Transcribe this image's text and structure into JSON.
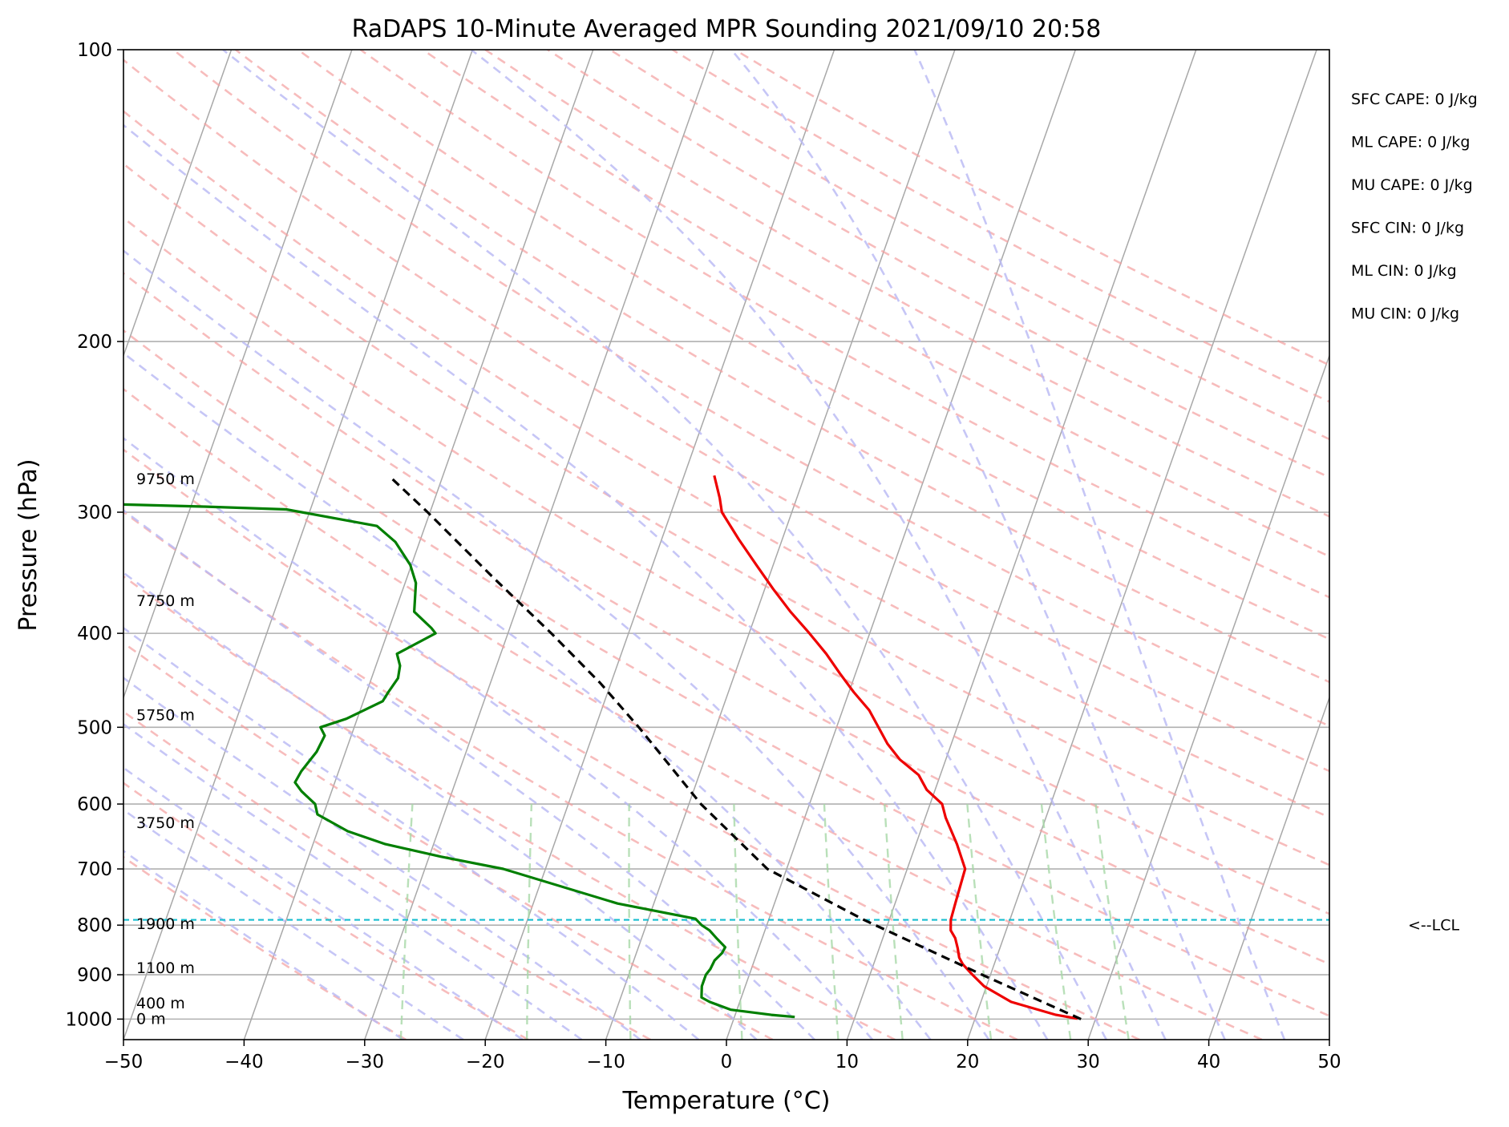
{
  "chart_data": {
    "type": "line",
    "title": "RaDAPS 10-Minute Averaged MPR Sounding 2021/09/10 20:58",
    "xlabel": "Temperature (°C)",
    "ylabel": "Pressure (hPa)",
    "xlim": [
      -50,
      50
    ],
    "ylim": [
      1050,
      100
    ],
    "y_scale": "log",
    "skew": "skew-T log-p",
    "grid": true,
    "x_ticks": [
      "−50",
      "−40",
      "−30",
      "−20",
      "−10",
      "0",
      "10",
      "20",
      "30",
      "40",
      "50"
    ],
    "y_ticks": [
      "100",
      "200",
      "300",
      "400",
      "500",
      "600",
      "700",
      "800",
      "900",
      "1000"
    ],
    "height_labels": [
      {
        "text": "9750 m",
        "p": 277
      },
      {
        "text": "7750 m",
        "p": 370
      },
      {
        "text": "5750 m",
        "p": 485
      },
      {
        "text": "3750 m",
        "p": 627
      },
      {
        "text": "1900 m",
        "p": 797
      },
      {
        "text": "1100 m",
        "p": 885
      },
      {
        "text": "400 m",
        "p": 962
      },
      {
        "text": "0 m",
        "p": 998
      }
    ],
    "lcl": {
      "label": "<--LCL",
      "p": 790,
      "color": "#17becf"
    },
    "indices": [
      "SFC CAPE: 0 J/kg",
      "ML CAPE: 0 J/kg",
      "MU CAPE: 0 J/kg",
      "SFC CIN: 0 J/kg",
      "ML CIN: 0 J/kg",
      "MU CIN: 0 J/kg"
    ],
    "series": [
      {
        "kind": "temperature",
        "color": "#ee0000",
        "points": [
          [
            999.0,
            28.5
          ],
          [
            990,
            26.6
          ],
          [
            960,
            22.5
          ],
          [
            925,
            19.8
          ],
          [
            900,
            18.5
          ],
          [
            878,
            17.4
          ],
          [
            864,
            16.9
          ],
          [
            845,
            16.5
          ],
          [
            825,
            16.0
          ],
          [
            810,
            15.4
          ],
          [
            790,
            15.1
          ],
          [
            760,
            15.0
          ],
          [
            700,
            14.8
          ],
          [
            660,
            13.4
          ],
          [
            620,
            11.7
          ],
          [
            600,
            11.0
          ],
          [
            580,
            9.3
          ],
          [
            560,
            8.2
          ],
          [
            540,
            6.2
          ],
          [
            520,
            4.7
          ],
          [
            480,
            2.2
          ],
          [
            460,
            0.4
          ],
          [
            440,
            -1.3
          ],
          [
            420,
            -3.0
          ],
          [
            400,
            -5.0
          ],
          [
            380,
            -7.2
          ],
          [
            360,
            -9.3
          ],
          [
            340,
            -11.4
          ],
          [
            320,
            -13.6
          ],
          [
            300,
            -15.8
          ],
          [
            290,
            -16.4
          ],
          [
            275,
            -17.5
          ]
        ]
      },
      {
        "kind": "dewpoint",
        "color": "#007f00",
        "points": [
          [
            995,
            5.0
          ],
          [
            990,
            3.0
          ],
          [
            978,
            -0.5
          ],
          [
            960,
            -2.5
          ],
          [
            950,
            -3.3
          ],
          [
            925,
            -3.6
          ],
          [
            915,
            -3.6
          ],
          [
            900,
            -3.6
          ],
          [
            888,
            -3.4
          ],
          [
            870,
            -3.3
          ],
          [
            855,
            -2.9
          ],
          [
            843,
            -2.8
          ],
          [
            825,
            -3.8
          ],
          [
            810,
            -4.6
          ],
          [
            800,
            -5.4
          ],
          [
            788,
            -6.1
          ],
          [
            760,
            -13.0
          ],
          [
            700,
            -23.5
          ],
          [
            680,
            -29.0
          ],
          [
            660,
            -34.0
          ],
          [
            640,
            -37.5
          ],
          [
            615,
            -40.5
          ],
          [
            600,
            -41.0
          ],
          [
            582,
            -42.5
          ],
          [
            570,
            -43.3
          ],
          [
            555,
            -43.1
          ],
          [
            530,
            -42.4
          ],
          [
            510,
            -42.2
          ],
          [
            500,
            -42.8
          ],
          [
            490,
            -40.9
          ],
          [
            470,
            -38.4
          ],
          [
            460,
            -38.2
          ],
          [
            445,
            -37.8
          ],
          [
            432,
            -38.0
          ],
          [
            420,
            -38.6
          ],
          [
            400,
            -36.0
          ],
          [
            395,
            -36.5
          ],
          [
            380,
            -38.4
          ],
          [
            355,
            -39.1
          ],
          [
            340,
            -40.1
          ],
          [
            322,
            -42.0
          ],
          [
            310,
            -44.0
          ],
          [
            298,
            -52.0
          ],
          [
            296,
            -59.0
          ],
          [
            294,
            -68.0
          ]
        ]
      },
      {
        "kind": "parcel",
        "color": "#000000",
        "style": "dashed",
        "points": [
          [
            1000,
            28.8
          ],
          [
            900,
            19.3
          ],
          [
            790,
            7.9
          ],
          [
            700,
            -1.6
          ],
          [
            600,
            -9.0
          ],
          [
            500,
            -16.4
          ],
          [
            450,
            -20.9
          ],
          [
            400,
            -26.4
          ],
          [
            350,
            -32.9
          ],
          [
            300,
            -40.2
          ],
          [
            275,
            -44.5
          ]
        ]
      }
    ]
  }
}
